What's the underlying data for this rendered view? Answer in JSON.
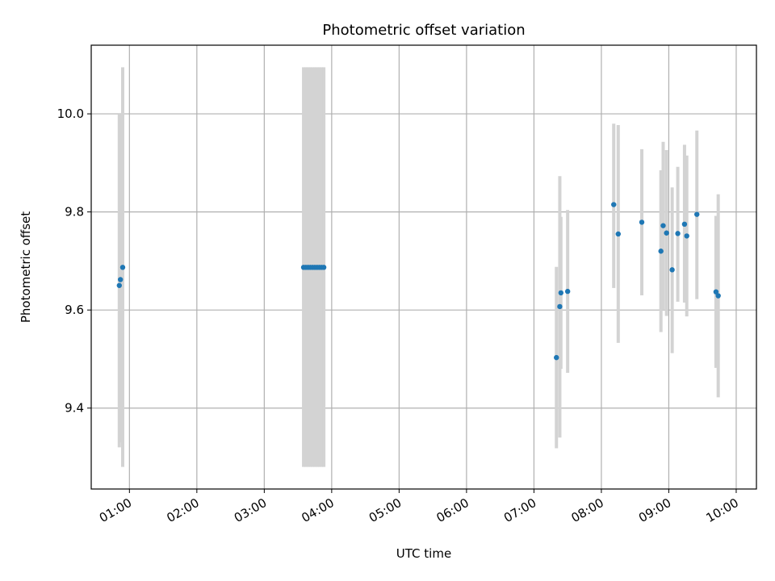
{
  "chart_data": {
    "type": "scatter",
    "title": "Photometric offset variation",
    "xlabel": "UTC time",
    "ylabel": "Photometric offset",
    "x_unit": "hours UTC",
    "xlim": [
      "00:26",
      "10:18"
    ],
    "ylim": [
      9.235,
      10.14
    ],
    "xticks": [
      "01:00",
      "02:00",
      "03:00",
      "04:00",
      "05:00",
      "06:00",
      "07:00",
      "08:00",
      "09:00",
      "10:00"
    ],
    "yticks": [
      9.4,
      9.6,
      9.8,
      10.0
    ],
    "ytick_labels": [
      "9.4",
      "9.6",
      "9.8",
      "10.0"
    ],
    "grid": true,
    "marker_color": "#1f77b4",
    "errorbar_color": "#d3d3d3",
    "points": [
      {
        "x": "00:51",
        "y": 9.65,
        "ylo": 9.32,
        "yhi": 10.0
      },
      {
        "x": "00:52",
        "y": 9.662,
        "ylo": 9.33,
        "yhi": 10.0
      },
      {
        "x": "00:54",
        "y": 9.687,
        "ylo": 9.28,
        "yhi": 10.095
      },
      {
        "x": "03:35",
        "y": 9.687,
        "ylo": 9.28,
        "yhi": 10.095
      },
      {
        "x": "03:37",
        "y": 9.687,
        "ylo": 9.28,
        "yhi": 10.095
      },
      {
        "x": "03:39",
        "y": 9.687,
        "ylo": 9.28,
        "yhi": 10.095
      },
      {
        "x": "03:41",
        "y": 9.687,
        "ylo": 9.28,
        "yhi": 10.095
      },
      {
        "x": "03:43",
        "y": 9.687,
        "ylo": 9.28,
        "yhi": 10.095
      },
      {
        "x": "03:45",
        "y": 9.687,
        "ylo": 9.28,
        "yhi": 10.095
      },
      {
        "x": "03:47",
        "y": 9.687,
        "ylo": 9.28,
        "yhi": 10.095
      },
      {
        "x": "03:49",
        "y": 9.687,
        "ylo": 9.28,
        "yhi": 10.095
      },
      {
        "x": "03:51",
        "y": 9.687,
        "ylo": 9.28,
        "yhi": 10.095
      },
      {
        "x": "03:53",
        "y": 9.687,
        "ylo": 9.28,
        "yhi": 10.095
      },
      {
        "x": "07:20",
        "y": 9.503,
        "ylo": 9.318,
        "yhi": 9.688
      },
      {
        "x": "07:23",
        "y": 9.607,
        "ylo": 9.34,
        "yhi": 9.873
      },
      {
        "x": "07:24",
        "y": 9.635,
        "ylo": 9.48,
        "yhi": 9.79
      },
      {
        "x": "07:30",
        "y": 9.638,
        "ylo": 9.472,
        "yhi": 9.804
      },
      {
        "x": "08:11",
        "y": 9.815,
        "ylo": 9.645,
        "yhi": 9.98
      },
      {
        "x": "08:15",
        "y": 9.755,
        "ylo": 9.533,
        "yhi": 9.977
      },
      {
        "x": "08:36",
        "y": 9.779,
        "ylo": 9.63,
        "yhi": 9.928
      },
      {
        "x": "08:53",
        "y": 9.72,
        "ylo": 9.555,
        "yhi": 9.885
      },
      {
        "x": "08:55",
        "y": 9.772,
        "ylo": 9.6,
        "yhi": 9.943
      },
      {
        "x": "08:58",
        "y": 9.757,
        "ylo": 9.588,
        "yhi": 9.926
      },
      {
        "x": "09:03",
        "y": 9.682,
        "ylo": 9.512,
        "yhi": 9.85
      },
      {
        "x": "09:08",
        "y": 9.756,
        "ylo": 9.617,
        "yhi": 9.892
      },
      {
        "x": "09:14",
        "y": 9.775,
        "ylo": 9.615,
        "yhi": 9.937
      },
      {
        "x": "09:16",
        "y": 9.751,
        "ylo": 9.587,
        "yhi": 9.915
      },
      {
        "x": "09:25",
        "y": 9.795,
        "ylo": 9.622,
        "yhi": 9.966
      },
      {
        "x": "09:42",
        "y": 9.637,
        "ylo": 9.482,
        "yhi": 9.792
      },
      {
        "x": "09:44",
        "y": 9.629,
        "ylo": 9.422,
        "yhi": 9.836
      }
    ]
  }
}
